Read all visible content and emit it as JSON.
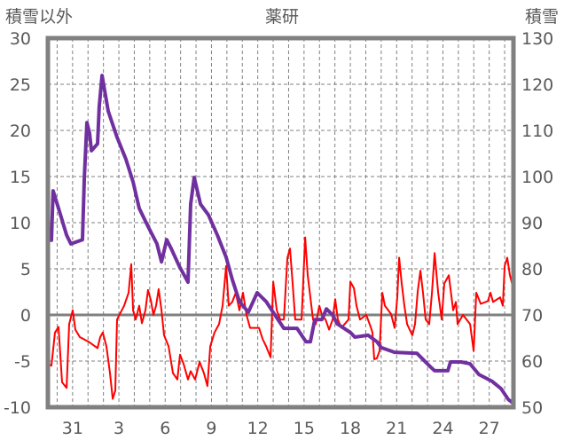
{
  "chart_data": {
    "type": "line",
    "title": "薬研",
    "ylabel_left": "積雪以外",
    "ylabel_right": "積雪",
    "ylim_left": [
      -10,
      30
    ],
    "ylim_right": [
      50,
      130
    ],
    "xlim": [
      0,
      30.17
    ],
    "grid": true,
    "yticks_left": [
      30,
      25,
      20,
      15,
      10,
      5,
      0,
      -5,
      -10
    ],
    "yticks_right": [
      130,
      120,
      110,
      100,
      90,
      80,
      70,
      60,
      50
    ],
    "xticks": [
      {
        "x": 1.6,
        "label": "31"
      },
      {
        "x": 4.6,
        "label": "3"
      },
      {
        "x": 7.6,
        "label": "6"
      },
      {
        "x": 10.6,
        "label": "9"
      },
      {
        "x": 13.6,
        "label": "12"
      },
      {
        "x": 16.6,
        "label": "15"
      },
      {
        "x": 19.6,
        "label": "18"
      },
      {
        "x": 22.6,
        "label": "21"
      },
      {
        "x": 25.6,
        "label": "24"
      },
      {
        "x": 28.6,
        "label": "27"
      }
    ],
    "series": [
      {
        "name": "積雪以外",
        "axis": "left",
        "color": "#ff0000",
        "points": [
          [
            0,
            -5.3
          ],
          [
            0.23,
            -5.5
          ],
          [
            0.46,
            -1.9
          ],
          [
            0.69,
            -1.3
          ],
          [
            0.92,
            -7.3
          ],
          [
            1.21,
            -7.9
          ],
          [
            1.38,
            -1.0
          ],
          [
            1.61,
            0.5
          ],
          [
            1.78,
            -1.6
          ],
          [
            2.07,
            -2.4
          ],
          [
            2.64,
            -2.9
          ],
          [
            3.22,
            -3.6
          ],
          [
            3.39,
            -2.4
          ],
          [
            3.56,
            -1.9
          ],
          [
            3.79,
            -3.4
          ],
          [
            4.02,
            -6.3
          ],
          [
            4.2,
            -9.1
          ],
          [
            4.37,
            -8.2
          ],
          [
            4.48,
            -0.5
          ],
          [
            4.94,
            1.0
          ],
          [
            5.23,
            2.4
          ],
          [
            5.4,
            5.5
          ],
          [
            5.52,
            0.5
          ],
          [
            5.69,
            -0.5
          ],
          [
            5.92,
            1.0
          ],
          [
            6.09,
            -0.9
          ],
          [
            6.32,
            0.5
          ],
          [
            6.49,
            2.7
          ],
          [
            6.67,
            1.6
          ],
          [
            6.84,
            0.0
          ],
          [
            7.01,
            1.0
          ],
          [
            7.18,
            2.8
          ],
          [
            7.36,
            0.5
          ],
          [
            7.53,
            -2.2
          ],
          [
            7.82,
            -3.4
          ],
          [
            8.1,
            -6.3
          ],
          [
            8.39,
            -7.0
          ],
          [
            8.56,
            -4.3
          ],
          [
            8.79,
            -5.3
          ],
          [
            9.08,
            -7.0
          ],
          [
            9.25,
            -6.1
          ],
          [
            9.54,
            -7.0
          ],
          [
            9.83,
            -5.1
          ],
          [
            10.11,
            -6.3
          ],
          [
            10.34,
            -7.7
          ],
          [
            10.52,
            -3.4
          ],
          [
            10.8,
            -1.9
          ],
          [
            11.09,
            -1.0
          ],
          [
            11.32,
            1.0
          ],
          [
            11.55,
            5.3
          ],
          [
            11.72,
            1.0
          ],
          [
            11.95,
            1.4
          ],
          [
            12.18,
            2.4
          ],
          [
            12.41,
            0.5
          ],
          [
            12.64,
            2.4
          ],
          [
            12.87,
            0.0
          ],
          [
            13.1,
            -1.4
          ],
          [
            13.68,
            -1.4
          ],
          [
            13.91,
            -2.6
          ],
          [
            14.14,
            -3.4
          ],
          [
            14.43,
            -4.6
          ],
          [
            14.6,
            3.6
          ],
          [
            14.83,
            0.5
          ],
          [
            15.06,
            -0.5
          ],
          [
            15.29,
            -0.5
          ],
          [
            15.52,
            6.2
          ],
          [
            15.69,
            7.2
          ],
          [
            15.86,
            3.4
          ],
          [
            16.03,
            -0.5
          ],
          [
            16.44,
            -0.5
          ],
          [
            16.67,
            8.4
          ],
          [
            16.84,
            4.3
          ],
          [
            17.01,
            1.9
          ],
          [
            17.18,
            -0.5
          ],
          [
            17.36,
            -1.0
          ],
          [
            17.59,
            1.0
          ],
          [
            17.76,
            0.0
          ],
          [
            17.99,
            -0.5
          ],
          [
            18.22,
            -1.6
          ],
          [
            18.45,
            -0.5
          ],
          [
            18.62,
            1.7
          ],
          [
            18.79,
            -0.5
          ],
          [
            19.02,
            -1.4
          ],
          [
            19.48,
            -0.5
          ],
          [
            19.6,
            3.6
          ],
          [
            19.83,
            2.9
          ],
          [
            20.0,
            1.0
          ],
          [
            20.23,
            -0.5
          ],
          [
            20.63,
            0.0
          ],
          [
            20.92,
            -1.3
          ],
          [
            21.03,
            -1.9
          ],
          [
            21.15,
            -4.8
          ],
          [
            21.32,
            -4.7
          ],
          [
            21.49,
            -3.9
          ],
          [
            21.67,
            2.4
          ],
          [
            21.84,
            1.0
          ],
          [
            22.24,
            0.1
          ],
          [
            22.47,
            -1.4
          ],
          [
            22.64,
            1.9
          ],
          [
            22.76,
            6.2
          ],
          [
            22.93,
            3.4
          ],
          [
            23.1,
            1.0
          ],
          [
            23.28,
            -1.0
          ],
          [
            23.62,
            -2.2
          ],
          [
            23.79,
            -1.0
          ],
          [
            23.97,
            2.6
          ],
          [
            24.14,
            4.8
          ],
          [
            24.31,
            2.4
          ],
          [
            24.48,
            -0.5
          ],
          [
            24.71,
            -1.0
          ],
          [
            24.89,
            2.4
          ],
          [
            25.06,
            6.7
          ],
          [
            25.29,
            2.4
          ],
          [
            25.52,
            -0.5
          ],
          [
            25.69,
            3.4
          ],
          [
            25.98,
            4.3
          ],
          [
            26.26,
            0.5
          ],
          [
            26.44,
            1.4
          ],
          [
            26.55,
            -1.0
          ],
          [
            26.9,
            0.0
          ],
          [
            27.36,
            -1.0
          ],
          [
            27.59,
            -3.9
          ],
          [
            27.76,
            2.4
          ],
          [
            28.05,
            1.2
          ],
          [
            28.51,
            1.5
          ],
          [
            28.68,
            2.4
          ],
          [
            28.85,
            1.4
          ],
          [
            29.31,
            1.9
          ],
          [
            29.48,
            1.0
          ],
          [
            29.6,
            5.3
          ],
          [
            29.77,
            6.2
          ],
          [
            29.94,
            4.3
          ],
          [
            30.17,
            2.8
          ]
        ]
      },
      {
        "name": "積雪",
        "axis": "right",
        "color": "#7030a0",
        "points": [
          [
            0,
            86.2
          ],
          [
            0.23,
            86.2
          ],
          [
            0.34,
            96.9
          ],
          [
            0.69,
            93.1
          ],
          [
            1.21,
            87.3
          ],
          [
            1.49,
            85.4
          ],
          [
            2.24,
            86.3
          ],
          [
            2.36,
            99.8
          ],
          [
            2.53,
            111.7
          ],
          [
            2.7,
            109.4
          ],
          [
            2.82,
            105.6
          ],
          [
            3.22,
            107.1
          ],
          [
            3.33,
            115.2
          ],
          [
            3.51,
            121.9
          ],
          [
            3.91,
            114.2
          ],
          [
            4.48,
            108.5
          ],
          [
            5.06,
            103.7
          ],
          [
            5.52,
            98.8
          ],
          [
            5.92,
            93.1
          ],
          [
            6.49,
            89.2
          ],
          [
            7.07,
            85.4
          ],
          [
            7.36,
            81.5
          ],
          [
            7.7,
            86.3
          ],
          [
            7.99,
            84.4
          ],
          [
            8.51,
            80.6
          ],
          [
            9.08,
            77.1
          ],
          [
            9.25,
            94.0
          ],
          [
            9.48,
            99.8
          ],
          [
            9.89,
            94.0
          ],
          [
            10.4,
            91.7
          ],
          [
            10.98,
            87.3
          ],
          [
            11.55,
            82.5
          ],
          [
            11.95,
            77.7
          ],
          [
            12.41,
            72.9
          ],
          [
            12.99,
            70.6
          ],
          [
            13.56,
            74.8
          ],
          [
            14.14,
            72.9
          ],
          [
            14.71,
            70.0
          ],
          [
            15.29,
            67.1
          ],
          [
            16.15,
            67.1
          ],
          [
            16.72,
            64.2
          ],
          [
            17.01,
            64.2
          ],
          [
            17.3,
            69.0
          ],
          [
            17.76,
            69.0
          ],
          [
            18.05,
            71.3
          ],
          [
            18.45,
            70.0
          ],
          [
            18.74,
            68.1
          ],
          [
            19.6,
            66.2
          ],
          [
            19.89,
            65.2
          ],
          [
            20.75,
            65.6
          ],
          [
            21.32,
            64.2
          ],
          [
            21.61,
            62.9
          ],
          [
            22.47,
            61.9
          ],
          [
            23.91,
            61.7
          ],
          [
            24.77,
            58.8
          ],
          [
            25.06,
            57.9
          ],
          [
            25.92,
            57.9
          ],
          [
            26.09,
            59.8
          ],
          [
            26.78,
            59.8
          ],
          [
            27.36,
            59.4
          ],
          [
            27.93,
            57.1
          ],
          [
            28.79,
            55.6
          ],
          [
            29.37,
            54.0
          ],
          [
            29.83,
            51.7
          ],
          [
            30.17,
            50.8
          ]
        ]
      }
    ]
  }
}
